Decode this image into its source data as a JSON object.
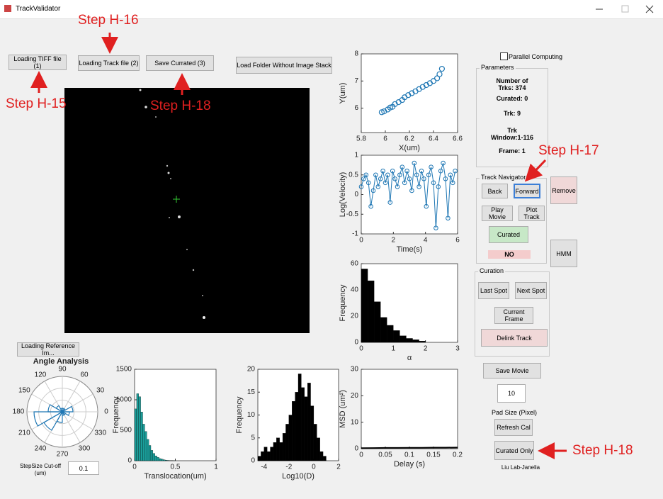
{
  "window": {
    "title": "TrackValidator"
  },
  "annotations": [
    "Step H-16",
    "Step H-15",
    "Step H-18",
    "Step H-17",
    "Step H-18"
  ],
  "buttons": {
    "load_tiff": "Loading TIFF file (1)",
    "load_track": "Loading Track file (2)",
    "save_curated": "Save Currated (3)",
    "load_folder": "Load Folder Without Image Stack",
    "load_reference": "Loading Reference Im...",
    "remove": "Remove",
    "hmm": "HMM",
    "save_movie": "Save Movie",
    "refresh_cal": "Refresh Cal",
    "curated_only": "Curated Only"
  },
  "parallel_computing": "Parallel Computing",
  "parameters": {
    "title": "Parameters",
    "number_of_trks": [
      "Number of",
      "Trks: 374"
    ],
    "curated": "Curated: 0",
    "trk": "Trk: 9",
    "trk_window": [
      "Trk",
      "Window:1-116"
    ],
    "frame": "Frame: 1"
  },
  "track_navigator": {
    "title": "Track Navigator",
    "back": "Back",
    "forward": "Forward",
    "play_movie": "Play Movie",
    "plot_track": "Plot Track",
    "curated": "Curated",
    "status": "NO"
  },
  "curation": {
    "title": "Curation",
    "last_spot": "Last Spot",
    "next_spot": "Next Spot",
    "current_frame": "Current Frame",
    "delink_track": "Delink Track"
  },
  "pad_size": {
    "value": "10",
    "label": "Pad Size (Pixel)"
  },
  "stepsize": {
    "label": [
      "StepSize Cut-off",
      "(um)"
    ],
    "value": "0.1"
  },
  "credit": "Liu Lab-Janelia",
  "plots": [
    {
      "type": "scatter",
      "xlabel": "X(um)",
      "ylabel": "Y(um)",
      "color": "#1f77b4",
      "x": [
        5.97,
        5.99,
        6.02,
        6.04,
        6.06,
        6.08,
        6.11,
        6.14,
        6.16,
        6.19,
        6.22,
        6.25,
        6.28,
        6.31,
        6.34,
        6.37,
        6.4,
        6.43,
        6.45,
        6.47
      ],
      "values": [
        5.85,
        5.88,
        5.95,
        6.02,
        6.05,
        6.15,
        6.22,
        6.3,
        6.4,
        6.48,
        6.55,
        6.62,
        6.7,
        6.78,
        6.85,
        6.92,
        7.0,
        7.1,
        7.25,
        7.45
      ],
      "xlim": [
        5.8,
        6.6
      ],
      "xticks": [
        5.8,
        6,
        6.2,
        6.4,
        6.6
      ],
      "ylim": [
        5.1,
        8
      ],
      "yticks": [
        6,
        7,
        8
      ]
    },
    {
      "type": "line",
      "xlabel": "Time(s)",
      "ylabel": "Log(Velocity)",
      "color": "#1f77b4",
      "markers": true,
      "x": [
        0,
        0.15,
        0.3,
        0.45,
        0.6,
        0.75,
        0.9,
        1.05,
        1.2,
        1.35,
        1.5,
        1.65,
        1.8,
        1.95,
        2.1,
        2.25,
        2.4,
        2.55,
        2.7,
        2.85,
        3,
        3.15,
        3.3,
        3.45,
        3.6,
        3.75,
        3.9,
        4.05,
        4.2,
        4.35,
        4.5,
        4.65,
        4.8,
        4.95,
        5.1,
        5.25,
        5.4,
        5.55,
        5.7,
        5.85
      ],
      "values": [
        0.2,
        0.4,
        0.5,
        0.3,
        -0.3,
        0.1,
        0.5,
        0.2,
        0.4,
        0.6,
        0.3,
        0.5,
        -0.2,
        0.6,
        0.4,
        0.2,
        0.5,
        0.7,
        0.3,
        0.6,
        0.4,
        0.1,
        0.8,
        0.5,
        0.2,
        0.6,
        0.4,
        -0.3,
        0.5,
        0.7,
        0.3,
        -0.85,
        0.2,
        0.6,
        0.8,
        0.4,
        -0.6,
        0.5,
        0.3,
        0.6
      ],
      "xlim": [
        0,
        6
      ],
      "xticks": [
        0,
        2,
        4,
        6
      ],
      "ylim": [
        -1,
        1
      ],
      "yticks": [
        -1,
        -0.5,
        0,
        0.5,
        1
      ]
    },
    {
      "type": "histogram",
      "xlabel": "α",
      "ylabel": "Frequency",
      "color": "#000000",
      "bins": [
        0,
        0.2,
        0.4,
        0.6,
        0.8,
        1.0,
        1.2,
        1.4,
        1.6,
        1.8,
        2.0
      ],
      "counts": [
        56,
        47,
        31,
        19,
        13,
        9,
        5,
        3,
        2,
        1
      ],
      "xlim": [
        0,
        3
      ],
      "xticks": [
        0,
        1,
        2,
        3
      ],
      "ylim": [
        0,
        60
      ],
      "yticks": [
        0,
        20,
        40,
        60
      ]
    },
    {
      "type": "line",
      "xlabel": "Delay (s)",
      "ylabel": "MSD (um²)",
      "color": "#000000",
      "markers": false,
      "x": [
        0,
        0.025,
        0.05,
        0.075,
        0.1,
        0.125,
        0.15,
        0.175,
        0.2
      ],
      "values": [
        0.2,
        0.25,
        0.3,
        0.3,
        0.35,
        0.35,
        0.4,
        0.4,
        0.45
      ],
      "xlim": [
        0,
        0.2
      ],
      "xticks": [
        0,
        0.05,
        0.1,
        0.15,
        0.2
      ],
      "ylim": [
        0,
        30
      ],
      "yticks": [
        0,
        10,
        20,
        30
      ]
    },
    {
      "type": "histogram",
      "xlabel": "Translocation(um)",
      "ylabel": "Frequency",
      "color": "#1a9e9a",
      "bins": [
        0,
        0.025,
        0.05,
        0.075,
        0.1,
        0.125,
        0.15,
        0.175,
        0.2,
        0.225,
        0.25,
        0.275,
        0.3,
        0.325,
        0.35,
        0.375,
        0.4,
        0.425,
        0.45,
        0.475,
        0.5
      ],
      "counts": [
        850,
        1100,
        1050,
        800,
        600,
        480,
        350,
        250,
        170,
        120,
        80,
        55,
        35,
        25,
        15,
        10,
        6,
        4,
        2,
        1
      ],
      "xlim": [
        0,
        1
      ],
      "xticks": [
        0,
        0.5,
        1
      ],
      "ylim": [
        0,
        1500
      ],
      "yticks": [
        0,
        500,
        1000,
        1500
      ]
    },
    {
      "type": "histogram",
      "xlabel": "Log10(D)",
      "ylabel": "Frequency",
      "color": "#000000",
      "bins": [
        -4.5,
        -4.25,
        -4,
        -3.75,
        -3.5,
        -3.25,
        -3,
        -2.75,
        -2.5,
        -2.25,
        -2,
        -1.75,
        -1.5,
        -1.25,
        -1,
        -0.75,
        -0.5,
        -0.25,
        0,
        0.25,
        0.5,
        0.75,
        1
      ],
      "counts": [
        1,
        2,
        3,
        2,
        3,
        4,
        5,
        4,
        6,
        8,
        10,
        13,
        15,
        19,
        16,
        14,
        17,
        12,
        8,
        5,
        2,
        1
      ],
      "xlim": [
        -4.5,
        2
      ],
      "xticks": [
        -4,
        -2,
        0,
        2
      ],
      "ylim": [
        0,
        20
      ],
      "yticks": [
        0,
        5,
        10,
        15,
        20
      ]
    },
    {
      "type": "polar",
      "title": "Angle Analysis",
      "color": "#1f77b4",
      "theta_ticks": [
        0,
        30,
        60,
        90,
        120,
        150,
        180,
        210,
        240,
        270,
        300,
        330
      ],
      "counts": [
        3,
        1,
        1,
        1,
        2,
        4,
        8,
        6,
        3,
        1,
        1,
        2
      ],
      "rlim": [
        0,
        10
      ]
    }
  ]
}
